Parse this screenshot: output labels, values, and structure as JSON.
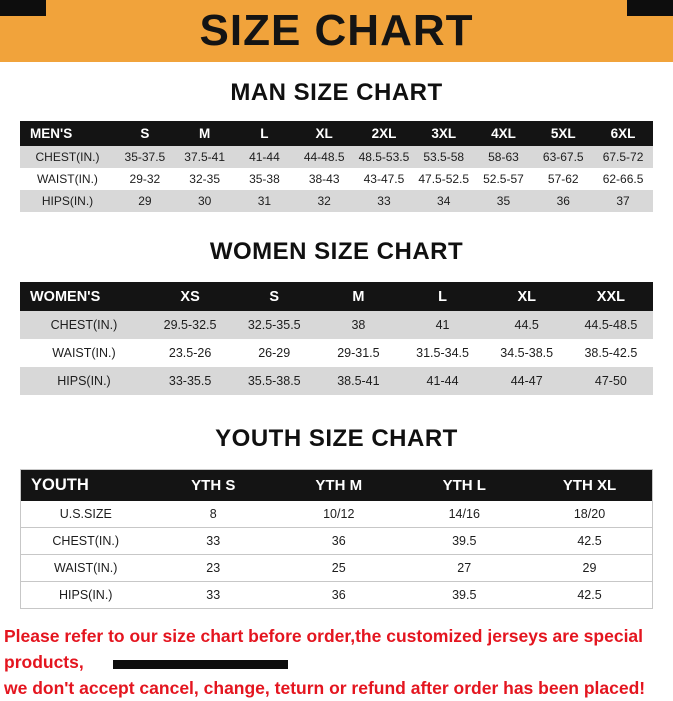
{
  "title": "SIZE CHART",
  "colors": {
    "banner": "#F1A33B",
    "red-text": "#E4151F",
    "table-header": "#141414",
    "row-alt": "#D8D8D8"
  },
  "sections": [
    {
      "heading": "MAN SIZE CHART",
      "table": {
        "header": [
          "MEN'S",
          "S",
          "M",
          "L",
          "XL",
          "2XL",
          "3XL",
          "4XL",
          "5XL",
          "6XL"
        ],
        "rows": [
          [
            "CHEST(IN.)",
            "35-37.5",
            "37.5-41",
            "41-44",
            "44-48.5",
            "48.5-53.5",
            "53.5-58",
            "58-63",
            "63-67.5",
            "67.5-72"
          ],
          [
            "WAIST(IN.)",
            "29-32",
            "32-35",
            "35-38",
            "38-43",
            "43-47.5",
            "47.5-52.5",
            "52.5-57",
            "57-62",
            "62-66.5"
          ],
          [
            "HIPS(IN.)",
            "29",
            "30",
            "31",
            "32",
            "33",
            "34",
            "35",
            "36",
            "37"
          ]
        ]
      }
    },
    {
      "heading": "WOMEN SIZE CHART",
      "table": {
        "header": [
          "WOMEN'S",
          "XS",
          "S",
          "M",
          "L",
          "XL",
          "XXL"
        ],
        "rows": [
          [
            "CHEST(IN.)",
            "29.5-32.5",
            "32.5-35.5",
            "38",
            "41",
            "44.5",
            "44.5-48.5"
          ],
          [
            "WAIST(IN.)",
            "23.5-26",
            "26-29",
            "29-31.5",
            "31.5-34.5",
            "34.5-38.5",
            "38.5-42.5"
          ],
          [
            "HIPS(IN.)",
            "33-35.5",
            "35.5-38.5",
            "38.5-41",
            "41-44",
            "44-47",
            "47-50"
          ]
        ]
      }
    },
    {
      "heading": "YOUTH SIZE CHART",
      "table": {
        "header": [
          "YOUTH",
          "YTH S",
          "YTH M",
          "YTH L",
          "YTH XL"
        ],
        "rows": [
          [
            "U.S.SIZE",
            "8",
            "10/12",
            "14/16",
            "18/20"
          ],
          [
            "CHEST(IN.)",
            "33",
            "36",
            "39.5",
            "42.5"
          ],
          [
            "WAIST(IN.)",
            "23",
            "25",
            "27",
            "29"
          ],
          [
            "HIPS(IN.)",
            "33",
            "36",
            "39.5",
            "42.5"
          ]
        ]
      }
    }
  ],
  "footer": {
    "line1": "Please refer to our size chart before order,the customized jerseys are special products,",
    "line2": "we don't accept cancel, change, teturn or refund after order has been placed!"
  }
}
